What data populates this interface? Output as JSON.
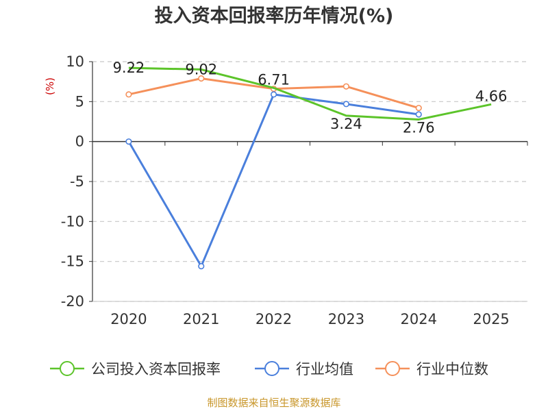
{
  "chart_data": {
    "type": "line",
    "title": "投入资本回报率历年情况(%)",
    "ylabel": "(%)",
    "xlabel": "",
    "categories": [
      "2020",
      "2021",
      "2022",
      "2023",
      "2024",
      "2025"
    ],
    "ylim": [
      -20,
      10
    ],
    "yticks": [
      10,
      5,
      0,
      -5,
      -10,
      -15,
      -20
    ],
    "grid": true,
    "legend_position": "bottom",
    "series": [
      {
        "name": "公司投入资本回报率",
        "color": "#5cc42a",
        "values": [
          9.22,
          9.02,
          6.71,
          3.24,
          2.76,
          4.66
        ],
        "labels": [
          "9.22",
          "9.02",
          "6.71",
          "3.24",
          "2.76",
          "4.66"
        ]
      },
      {
        "name": "行业均值",
        "color": "#4a7fdc",
        "values": [
          0.0,
          -15.6,
          5.9,
          4.7,
          3.4,
          null
        ]
      },
      {
        "name": "行业中位数",
        "color": "#f5905a",
        "values": [
          5.9,
          7.9,
          6.6,
          6.9,
          4.2,
          null
        ]
      }
    ]
  },
  "source": "制图数据来自恒生聚源数据库"
}
